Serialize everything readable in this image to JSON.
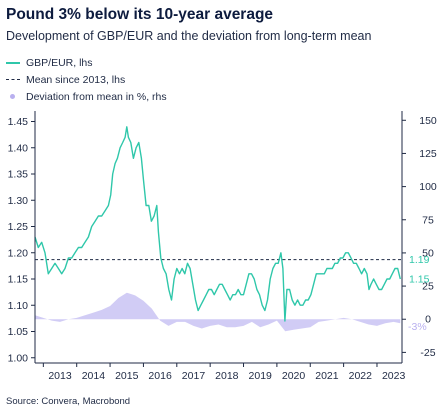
{
  "title": "Pound 3% below its 10-year average",
  "subtitle": "Development of GBP/EUR and the deviation from long-term mean",
  "source": "Source: Convera, Macrobond",
  "colors": {
    "gbp": "#2fc7aa",
    "mean": "#1f2a44",
    "deviation": "#b9b0ef",
    "axis": "#1f2a44"
  },
  "chart_data": {
    "type": "line",
    "legend": [
      "GBP/EUR, lhs",
      "Mean since 2013, lhs",
      "Deviation from mean in %, rhs"
    ],
    "legend_position": "top-left",
    "grid": false,
    "x_range": [
      2012.75,
      2023.75
    ],
    "xticks": [
      "2013",
      "2014",
      "2015",
      "2016",
      "2017",
      "2018",
      "2019",
      "2020",
      "2021",
      "2022",
      "2023"
    ],
    "y_left": {
      "ticks": [
        "1.00",
        "1.05",
        "1.10",
        "1.15",
        "1.20",
        "1.25",
        "1.30",
        "1.35",
        "1.40",
        "1.45"
      ],
      "range": [
        0.99,
        1.47
      ]
    },
    "y_right": {
      "ticks": [
        "-25",
        "0",
        "25",
        "50",
        "75",
        "100",
        "125",
        "150"
      ],
      "range": [
        -33,
        157
      ]
    },
    "mean_value": 1.187,
    "end_labels": {
      "mean": "1.19",
      "last": "1.15",
      "deviation": "-3%"
    },
    "series": [
      {
        "name": "GBP/EUR, lhs",
        "axis": "left",
        "points": [
          [
            2012.75,
            1.23
          ],
          [
            2012.85,
            1.21
          ],
          [
            2012.95,
            1.22
          ],
          [
            2013.05,
            1.2
          ],
          [
            2013.15,
            1.16
          ],
          [
            2013.25,
            1.17
          ],
          [
            2013.35,
            1.18
          ],
          [
            2013.45,
            1.17
          ],
          [
            2013.55,
            1.16
          ],
          [
            2013.65,
            1.17
          ],
          [
            2013.75,
            1.19
          ],
          [
            2013.85,
            1.19
          ],
          [
            2013.95,
            1.2
          ],
          [
            2014.05,
            1.21
          ],
          [
            2014.15,
            1.21
          ],
          [
            2014.25,
            1.22
          ],
          [
            2014.35,
            1.23
          ],
          [
            2014.45,
            1.25
          ],
          [
            2014.55,
            1.26
          ],
          [
            2014.65,
            1.27
          ],
          [
            2014.75,
            1.27
          ],
          [
            2014.85,
            1.28
          ],
          [
            2014.95,
            1.29
          ],
          [
            2015.02,
            1.31
          ],
          [
            2015.08,
            1.35
          ],
          [
            2015.15,
            1.37
          ],
          [
            2015.22,
            1.38
          ],
          [
            2015.3,
            1.4
          ],
          [
            2015.38,
            1.41
          ],
          [
            2015.45,
            1.42
          ],
          [
            2015.5,
            1.44
          ],
          [
            2015.55,
            1.42
          ],
          [
            2015.62,
            1.41
          ],
          [
            2015.7,
            1.38
          ],
          [
            2015.78,
            1.4
          ],
          [
            2015.86,
            1.41
          ],
          [
            2015.94,
            1.38
          ],
          [
            2016.0,
            1.34
          ],
          [
            2016.08,
            1.29
          ],
          [
            2016.16,
            1.29
          ],
          [
            2016.24,
            1.26
          ],
          [
            2016.32,
            1.27
          ],
          [
            2016.4,
            1.29
          ],
          [
            2016.45,
            1.24
          ],
          [
            2016.52,
            1.19
          ],
          [
            2016.6,
            1.17
          ],
          [
            2016.68,
            1.16
          ],
          [
            2016.76,
            1.13
          ],
          [
            2016.84,
            1.11
          ],
          [
            2016.92,
            1.15
          ],
          [
            2017.0,
            1.17
          ],
          [
            2017.08,
            1.16
          ],
          [
            2017.16,
            1.17
          ],
          [
            2017.24,
            1.16
          ],
          [
            2017.32,
            1.18
          ],
          [
            2017.4,
            1.17
          ],
          [
            2017.48,
            1.14
          ],
          [
            2017.56,
            1.11
          ],
          [
            2017.64,
            1.09
          ],
          [
            2017.72,
            1.1
          ],
          [
            2017.8,
            1.11
          ],
          [
            2017.88,
            1.12
          ],
          [
            2017.96,
            1.13
          ],
          [
            2018.04,
            1.13
          ],
          [
            2018.12,
            1.12
          ],
          [
            2018.2,
            1.13
          ],
          [
            2018.28,
            1.14
          ],
          [
            2018.36,
            1.14
          ],
          [
            2018.44,
            1.13
          ],
          [
            2018.52,
            1.12
          ],
          [
            2018.6,
            1.11
          ],
          [
            2018.68,
            1.12
          ],
          [
            2018.76,
            1.12
          ],
          [
            2018.84,
            1.13
          ],
          [
            2018.92,
            1.12
          ],
          [
            2019.0,
            1.12
          ],
          [
            2019.08,
            1.14
          ],
          [
            2019.16,
            1.16
          ],
          [
            2019.24,
            1.16
          ],
          [
            2019.32,
            1.15
          ],
          [
            2019.4,
            1.13
          ],
          [
            2019.48,
            1.12
          ],
          [
            2019.56,
            1.1
          ],
          [
            2019.64,
            1.09
          ],
          [
            2019.72,
            1.11
          ],
          [
            2019.8,
            1.15
          ],
          [
            2019.88,
            1.17
          ],
          [
            2019.96,
            1.18
          ],
          [
            2020.04,
            1.18
          ],
          [
            2020.12,
            1.2
          ],
          [
            2020.18,
            1.17
          ],
          [
            2020.24,
            1.07
          ],
          [
            2020.3,
            1.13
          ],
          [
            2020.38,
            1.13
          ],
          [
            2020.46,
            1.11
          ],
          [
            2020.54,
            1.1
          ],
          [
            2020.62,
            1.11
          ],
          [
            2020.7,
            1.1
          ],
          [
            2020.78,
            1.1
          ],
          [
            2020.86,
            1.11
          ],
          [
            2020.94,
            1.11
          ],
          [
            2021.02,
            1.12
          ],
          [
            2021.1,
            1.14
          ],
          [
            2021.18,
            1.16
          ],
          [
            2021.26,
            1.16
          ],
          [
            2021.34,
            1.16
          ],
          [
            2021.42,
            1.16
          ],
          [
            2021.5,
            1.17
          ],
          [
            2021.58,
            1.17
          ],
          [
            2021.66,
            1.17
          ],
          [
            2021.74,
            1.18
          ],
          [
            2021.82,
            1.18
          ],
          [
            2021.9,
            1.19
          ],
          [
            2021.98,
            1.19
          ],
          [
            2022.06,
            1.2
          ],
          [
            2022.14,
            1.2
          ],
          [
            2022.22,
            1.19
          ],
          [
            2022.3,
            1.18
          ],
          [
            2022.38,
            1.18
          ],
          [
            2022.46,
            1.17
          ],
          [
            2022.54,
            1.16
          ],
          [
            2022.62,
            1.17
          ],
          [
            2022.7,
            1.16
          ],
          [
            2022.76,
            1.13
          ],
          [
            2022.82,
            1.14
          ],
          [
            2022.9,
            1.15
          ],
          [
            2022.98,
            1.14
          ],
          [
            2023.06,
            1.13
          ],
          [
            2023.14,
            1.13
          ],
          [
            2023.22,
            1.14
          ],
          [
            2023.3,
            1.15
          ],
          [
            2023.38,
            1.15
          ],
          [
            2023.46,
            1.16
          ],
          [
            2023.54,
            1.17
          ],
          [
            2023.62,
            1.17
          ],
          [
            2023.7,
            1.15
          ]
        ]
      },
      {
        "name": "Mean since 2013, lhs",
        "axis": "left",
        "style": "dashed",
        "points": [
          [
            2012.75,
            1.187
          ],
          [
            2023.75,
            1.187
          ]
        ]
      },
      {
        "name": "Deviation from mean in %, rhs",
        "axis": "right",
        "style": "area",
        "points": [
          [
            2012.75,
            3
          ],
          [
            2013.0,
            1
          ],
          [
            2013.25,
            -1
          ],
          [
            2013.5,
            -2
          ],
          [
            2013.75,
            0
          ],
          [
            2014.0,
            1
          ],
          [
            2014.25,
            3
          ],
          [
            2014.5,
            5
          ],
          [
            2014.75,
            7
          ],
          [
            2015.0,
            10
          ],
          [
            2015.25,
            16
          ],
          [
            2015.5,
            20
          ],
          [
            2015.75,
            18
          ],
          [
            2016.0,
            14
          ],
          [
            2016.25,
            8
          ],
          [
            2016.5,
            -1
          ],
          [
            2016.75,
            -5
          ],
          [
            2017.0,
            -2
          ],
          [
            2017.25,
            -2
          ],
          [
            2017.5,
            -5
          ],
          [
            2017.75,
            -7
          ],
          [
            2018.0,
            -5
          ],
          [
            2018.25,
            -4
          ],
          [
            2018.5,
            -6
          ],
          [
            2018.75,
            -6
          ],
          [
            2019.0,
            -5
          ],
          [
            2019.25,
            -2
          ],
          [
            2019.5,
            -6
          ],
          [
            2019.75,
            -4
          ],
          [
            2020.0,
            -1
          ],
          [
            2020.25,
            -9
          ],
          [
            2020.5,
            -8
          ],
          [
            2020.75,
            -7
          ],
          [
            2021.0,
            -6
          ],
          [
            2021.25,
            -2
          ],
          [
            2021.5,
            -1
          ],
          [
            2021.75,
            0
          ],
          [
            2022.0,
            1
          ],
          [
            2022.25,
            0
          ],
          [
            2022.5,
            -2
          ],
          [
            2022.75,
            -4
          ],
          [
            2023.0,
            -5
          ],
          [
            2023.25,
            -3
          ],
          [
            2023.5,
            -2
          ],
          [
            2023.7,
            -3
          ]
        ]
      }
    ]
  }
}
